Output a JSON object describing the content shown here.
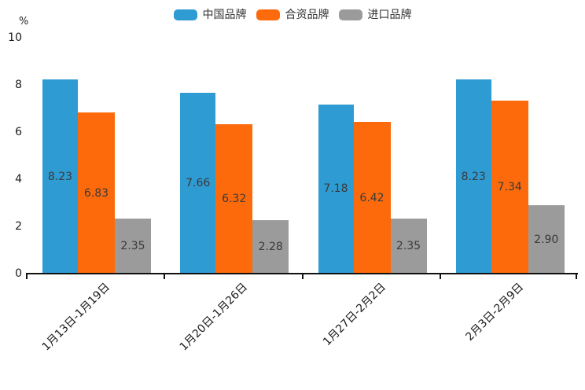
{
  "chart_data": {
    "type": "bar",
    "title": "",
    "xlabel": "",
    "ylabel": "%",
    "ylim": [
      0,
      10
    ],
    "yticks": [
      0,
      2,
      4,
      6,
      8,
      10
    ],
    "grid": false,
    "legend_position": "top-center",
    "categories": [
      "1月13日-1月19日",
      "1月20日-1月26日",
      "1月27日-2月2日",
      "2月3日-2月9日"
    ],
    "series": [
      {
        "name": "中国品牌",
        "color": "#2E9BD3",
        "values": [
          8.23,
          7.66,
          7.18,
          8.23
        ]
      },
      {
        "name": "合资品牌",
        "color": "#FC6A0C",
        "values": [
          6.83,
          6.32,
          6.42,
          7.34
        ]
      },
      {
        "name": "进口品牌",
        "color": "#9B9B9B",
        "values": [
          2.35,
          2.28,
          2.35,
          2.9
        ]
      }
    ],
    "value_label_decimals": 2
  }
}
